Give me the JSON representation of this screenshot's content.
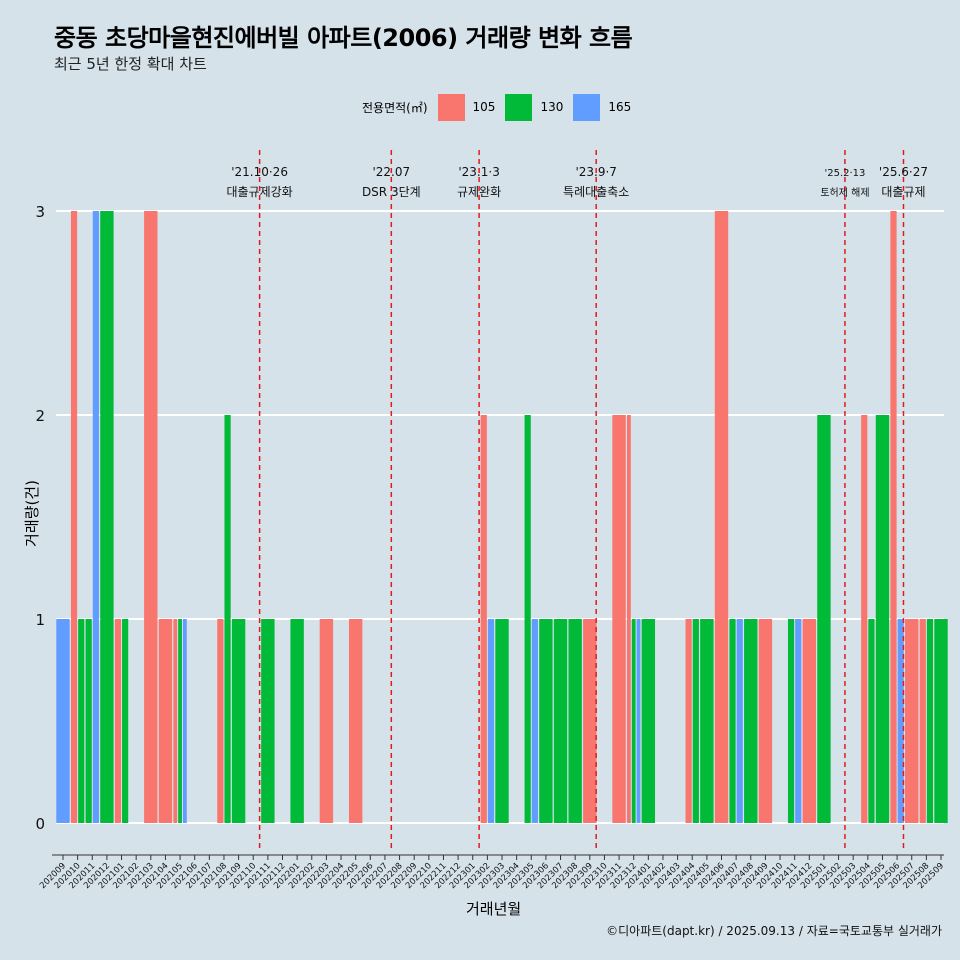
{
  "title": "중동 초당마을현진에버빌 아파트(2006) 거래량 변화 흐름",
  "subtitle": "최근 5년 한정 확대 차트",
  "caption": "©디아파트(dapt.kr) / 2025.09.13 / 자료=국토교통부 실거래가",
  "legend": {
    "title": "전용면적(㎡)",
    "items": [
      {
        "label": "105",
        "color": "#F8766D"
      },
      {
        "label": "130",
        "color": "#00BA38"
      },
      {
        "label": "165",
        "color": "#619CFF"
      }
    ]
  },
  "chart_data": {
    "type": "bar",
    "xlabel": "거래년월",
    "ylabel": "거래량(건)",
    "ylim": [
      0,
      3
    ],
    "yticks": [
      0,
      1,
      2,
      3
    ],
    "categories": [
      "202009",
      "202010",
      "202011",
      "202012",
      "202101",
      "202102",
      "202103",
      "202104",
      "202105",
      "202106",
      "202107",
      "202108",
      "202109",
      "202110",
      "202111",
      "202112",
      "202201",
      "202202",
      "202203",
      "202204",
      "202205",
      "202206",
      "202207",
      "202208",
      "202209",
      "202210",
      "202211",
      "202212",
      "202301",
      "202302",
      "202303",
      "202304",
      "202305",
      "202306",
      "202307",
      "202308",
      "202309",
      "202310",
      "202311",
      "202312",
      "202401",
      "202402",
      "202403",
      "202404",
      "202405",
      "202406",
      "202407",
      "202408",
      "202409",
      "202410",
      "202411",
      "202412",
      "202501",
      "202502",
      "202503",
      "202504",
      "202505",
      "202506",
      "202507",
      "202508",
      "202509"
    ],
    "series": [
      {
        "name": "105",
        "color": "#F8766D",
        "values": [
          0,
          3,
          0,
          0,
          1,
          0,
          3,
          1,
          1,
          0,
          0,
          1,
          0,
          0,
          0,
          0,
          0,
          0,
          1,
          0,
          1,
          0,
          0,
          0,
          0,
          0,
          0,
          0,
          0,
          2,
          0,
          0,
          0,
          0,
          0,
          0,
          1,
          0,
          2,
          2,
          0,
          0,
          0,
          1,
          0,
          3,
          0,
          0,
          1,
          0,
          0,
          1,
          0,
          0,
          0,
          2,
          0,
          3,
          1,
          1,
          0
        ]
      },
      {
        "name": "130",
        "color": "#00BA38",
        "values": [
          0,
          1,
          1,
          3,
          1,
          0,
          0,
          0,
          1,
          0,
          0,
          2,
          1,
          0,
          1,
          0,
          1,
          0,
          0,
          0,
          0,
          0,
          0,
          0,
          0,
          0,
          0,
          0,
          0,
          0,
          1,
          0,
          2,
          1,
          1,
          1,
          0,
          0,
          0,
          1,
          1,
          0,
          0,
          1,
          1,
          0,
          1,
          1,
          0,
          0,
          1,
          0,
          2,
          0,
          0,
          1,
          2,
          0,
          0,
          1,
          1
        ]
      },
      {
        "name": "165",
        "color": "#619CFF",
        "values": [
          1,
          0,
          3,
          0,
          0,
          0,
          0,
          0,
          1,
          0,
          0,
          0,
          0,
          0,
          0,
          0,
          0,
          0,
          0,
          0,
          0,
          0,
          0,
          0,
          0,
          0,
          0,
          0,
          0,
          1,
          0,
          0,
          1,
          0,
          0,
          0,
          0,
          0,
          0,
          1,
          0,
          0,
          0,
          0,
          0,
          0,
          1,
          0,
          0,
          0,
          1,
          0,
          0,
          0,
          0,
          0,
          0,
          1,
          0,
          0,
          0
        ]
      }
    ],
    "events": [
      {
        "date": "'21.10·26",
        "label": "대출규제강화",
        "after": "202110"
      },
      {
        "date": "'22.07",
        "label": "DSR 3단계",
        "after": "202207"
      },
      {
        "date": "'23.1·3",
        "label": "규제완화",
        "after": "202301"
      },
      {
        "date": "'23.9·7",
        "label": "특례대출축소",
        "after": "202309"
      },
      {
        "date": "'25.2·13",
        "label": "토허제 해제",
        "after": "202502"
      },
      {
        "date": "'25.6·27",
        "label": "대출규제",
        "after": "202506"
      }
    ]
  }
}
